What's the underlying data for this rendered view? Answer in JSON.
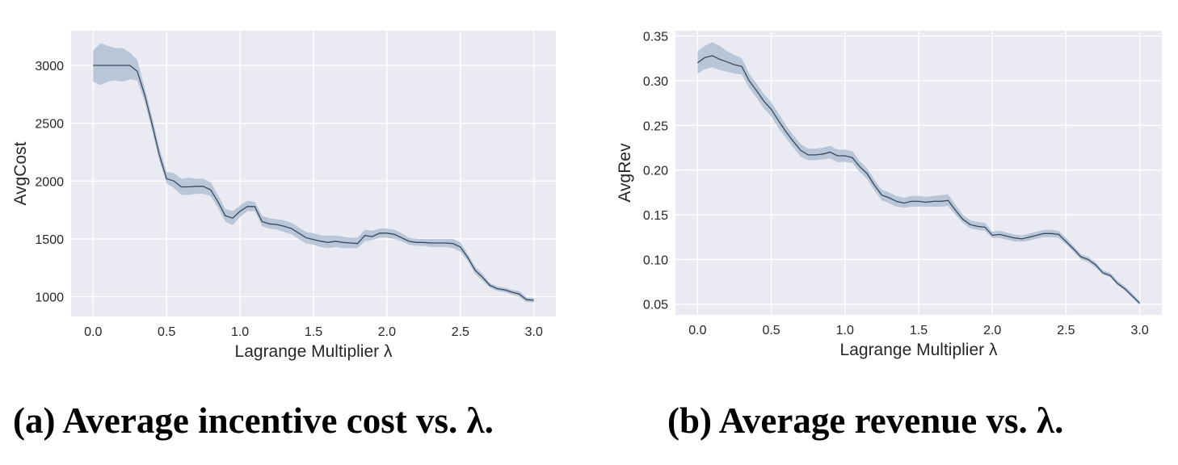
{
  "chart_data": [
    {
      "type": "line",
      "xlabel": "Lagrange Multiplier λ",
      "ylabel": "AvgCost",
      "xlim": [
        -0.15,
        3.15
      ],
      "ylim": [
        830,
        3300
      ],
      "xticks": [
        0.0,
        0.5,
        1.0,
        1.5,
        2.0,
        2.5,
        3.0
      ],
      "xtick_labels": [
        "0.0",
        "0.5",
        "1.0",
        "1.5",
        "2.0",
        "2.5",
        "3.0"
      ],
      "yticks": [
        1000,
        1500,
        2000,
        2500,
        3000
      ],
      "ytick_labels": [
        "1000",
        "1500",
        "2000",
        "2500",
        "3000"
      ],
      "grid": true,
      "line_color": "#34495e",
      "band_color": "#a7b9cf",
      "background": "#eaeaf2",
      "x": [
        0.0,
        0.05,
        0.1,
        0.15,
        0.2,
        0.25,
        0.3,
        0.35,
        0.4,
        0.45,
        0.5,
        0.55,
        0.6,
        0.65,
        0.7,
        0.75,
        0.8,
        0.85,
        0.9,
        0.95,
        1.0,
        1.05,
        1.1,
        1.15,
        1.2,
        1.25,
        1.3,
        1.35,
        1.4,
        1.45,
        1.5,
        1.55,
        1.6,
        1.65,
        1.7,
        1.75,
        1.8,
        1.85,
        1.9,
        1.95,
        2.0,
        2.05,
        2.1,
        2.15,
        2.2,
        2.25,
        2.3,
        2.35,
        2.4,
        2.45,
        2.5,
        2.55,
        2.6,
        2.65,
        2.7,
        2.75,
        2.8,
        2.85,
        2.9,
        2.95,
        3.0
      ],
      "mean": [
        3000,
        3000,
        3000,
        3000,
        3000,
        3000,
        2950,
        2750,
        2500,
        2230,
        2020,
        2000,
        1950,
        1950,
        1955,
        1955,
        1925,
        1820,
        1700,
        1680,
        1740,
        1780,
        1780,
        1650,
        1630,
        1625,
        1610,
        1590,
        1550,
        1510,
        1495,
        1480,
        1470,
        1480,
        1470,
        1465,
        1460,
        1530,
        1520,
        1550,
        1550,
        1540,
        1510,
        1480,
        1470,
        1470,
        1465,
        1465,
        1465,
        1460,
        1430,
        1340,
        1230,
        1170,
        1100,
        1070,
        1060,
        1040,
        1025,
        975,
        970
      ],
      "lower": [
        2860,
        2830,
        2860,
        2870,
        2860,
        2880,
        2870,
        2690,
        2440,
        2180,
        1980,
        1940,
        1880,
        1880,
        1890,
        1890,
        1870,
        1770,
        1650,
        1620,
        1690,
        1740,
        1740,
        1610,
        1590,
        1580,
        1560,
        1540,
        1500,
        1460,
        1450,
        1430,
        1420,
        1430,
        1420,
        1420,
        1420,
        1480,
        1490,
        1510,
        1510,
        1500,
        1480,
        1450,
        1440,
        1440,
        1430,
        1430,
        1430,
        1420,
        1390,
        1310,
        1200,
        1140,
        1080,
        1050,
        1040,
        1020,
        1000,
        955,
        950
      ],
      "upper": [
        3130,
        3190,
        3170,
        3150,
        3150,
        3110,
        3050,
        2810,
        2560,
        2290,
        2080,
        2070,
        2020,
        2030,
        2020,
        2020,
        1990,
        1880,
        1760,
        1740,
        1790,
        1830,
        1820,
        1700,
        1680,
        1670,
        1660,
        1640,
        1600,
        1560,
        1550,
        1530,
        1530,
        1530,
        1520,
        1510,
        1510,
        1580,
        1570,
        1590,
        1590,
        1580,
        1550,
        1510,
        1500,
        1500,
        1500,
        1500,
        1500,
        1500,
        1470,
        1370,
        1260,
        1200,
        1120,
        1090,
        1080,
        1060,
        1050,
        995,
        990
      ]
    },
    {
      "type": "line",
      "xlabel": "Lagrange Multiplier λ",
      "ylabel": "AvgRev",
      "xlim": [
        -0.15,
        3.15
      ],
      "ylim": [
        0.038,
        0.356
      ],
      "xticks": [
        0.0,
        0.5,
        1.0,
        1.5,
        2.0,
        2.5,
        3.0
      ],
      "xtick_labels": [
        "0.0",
        "0.5",
        "1.0",
        "1.5",
        "2.0",
        "2.5",
        "3.0"
      ],
      "yticks": [
        0.05,
        0.1,
        0.15,
        0.2,
        0.25,
        0.3,
        0.35
      ],
      "ytick_labels": [
        "0.05",
        "0.10",
        "0.15",
        "0.20",
        "0.25",
        "0.30",
        "0.35"
      ],
      "grid": true,
      "line_color": "#34495e",
      "band_color": "#a7b9cf",
      "background": "#eaeaf2",
      "x": [
        0.0,
        0.05,
        0.1,
        0.15,
        0.2,
        0.25,
        0.3,
        0.35,
        0.4,
        0.45,
        0.5,
        0.55,
        0.6,
        0.65,
        0.7,
        0.75,
        0.8,
        0.85,
        0.9,
        0.95,
        1.0,
        1.05,
        1.1,
        1.15,
        1.2,
        1.25,
        1.3,
        1.35,
        1.4,
        1.45,
        1.5,
        1.55,
        1.6,
        1.65,
        1.7,
        1.75,
        1.8,
        1.85,
        1.9,
        1.95,
        2.0,
        2.05,
        2.1,
        2.15,
        2.2,
        2.25,
        2.3,
        2.35,
        2.4,
        2.45,
        2.5,
        2.55,
        2.6,
        2.65,
        2.7,
        2.75,
        2.8,
        2.85,
        2.9,
        2.95,
        3.0
      ],
      "mean": [
        0.32,
        0.326,
        0.328,
        0.324,
        0.321,
        0.318,
        0.316,
        0.3,
        0.289,
        0.277,
        0.268,
        0.255,
        0.243,
        0.232,
        0.222,
        0.217,
        0.217,
        0.218,
        0.22,
        0.216,
        0.216,
        0.214,
        0.204,
        0.196,
        0.183,
        0.172,
        0.169,
        0.165,
        0.163,
        0.165,
        0.165,
        0.164,
        0.165,
        0.165,
        0.166,
        0.155,
        0.145,
        0.139,
        0.137,
        0.136,
        0.127,
        0.128,
        0.126,
        0.124,
        0.123,
        0.125,
        0.127,
        0.129,
        0.129,
        0.128,
        0.12,
        0.112,
        0.103,
        0.1,
        0.094,
        0.085,
        0.082,
        0.073,
        0.067,
        0.059,
        0.051
      ],
      "lower": [
        0.308,
        0.313,
        0.315,
        0.312,
        0.31,
        0.308,
        0.307,
        0.292,
        0.281,
        0.269,
        0.26,
        0.247,
        0.236,
        0.225,
        0.215,
        0.211,
        0.211,
        0.212,
        0.213,
        0.209,
        0.209,
        0.208,
        0.198,
        0.19,
        0.177,
        0.166,
        0.163,
        0.159,
        0.158,
        0.159,
        0.159,
        0.159,
        0.159,
        0.159,
        0.16,
        0.15,
        0.141,
        0.135,
        0.133,
        0.132,
        0.124,
        0.124,
        0.122,
        0.12,
        0.12,
        0.121,
        0.123,
        0.125,
        0.125,
        0.124,
        0.117,
        0.109,
        0.1,
        0.097,
        0.091,
        0.083,
        0.08,
        0.071,
        0.065,
        0.057,
        0.049
      ],
      "upper": [
        0.333,
        0.339,
        0.343,
        0.339,
        0.333,
        0.329,
        0.325,
        0.308,
        0.297,
        0.285,
        0.276,
        0.263,
        0.25,
        0.239,
        0.229,
        0.224,
        0.224,
        0.225,
        0.227,
        0.223,
        0.223,
        0.221,
        0.21,
        0.202,
        0.189,
        0.178,
        0.175,
        0.171,
        0.169,
        0.171,
        0.171,
        0.17,
        0.171,
        0.172,
        0.173,
        0.161,
        0.15,
        0.144,
        0.142,
        0.141,
        0.131,
        0.132,
        0.13,
        0.128,
        0.127,
        0.129,
        0.131,
        0.133,
        0.133,
        0.132,
        0.124,
        0.115,
        0.106,
        0.103,
        0.097,
        0.088,
        0.085,
        0.076,
        0.07,
        0.062,
        0.053
      ]
    }
  ],
  "captions": [
    "(a) Average incentive cost vs. λ.",
    "(b) Average revenue vs. λ."
  ]
}
